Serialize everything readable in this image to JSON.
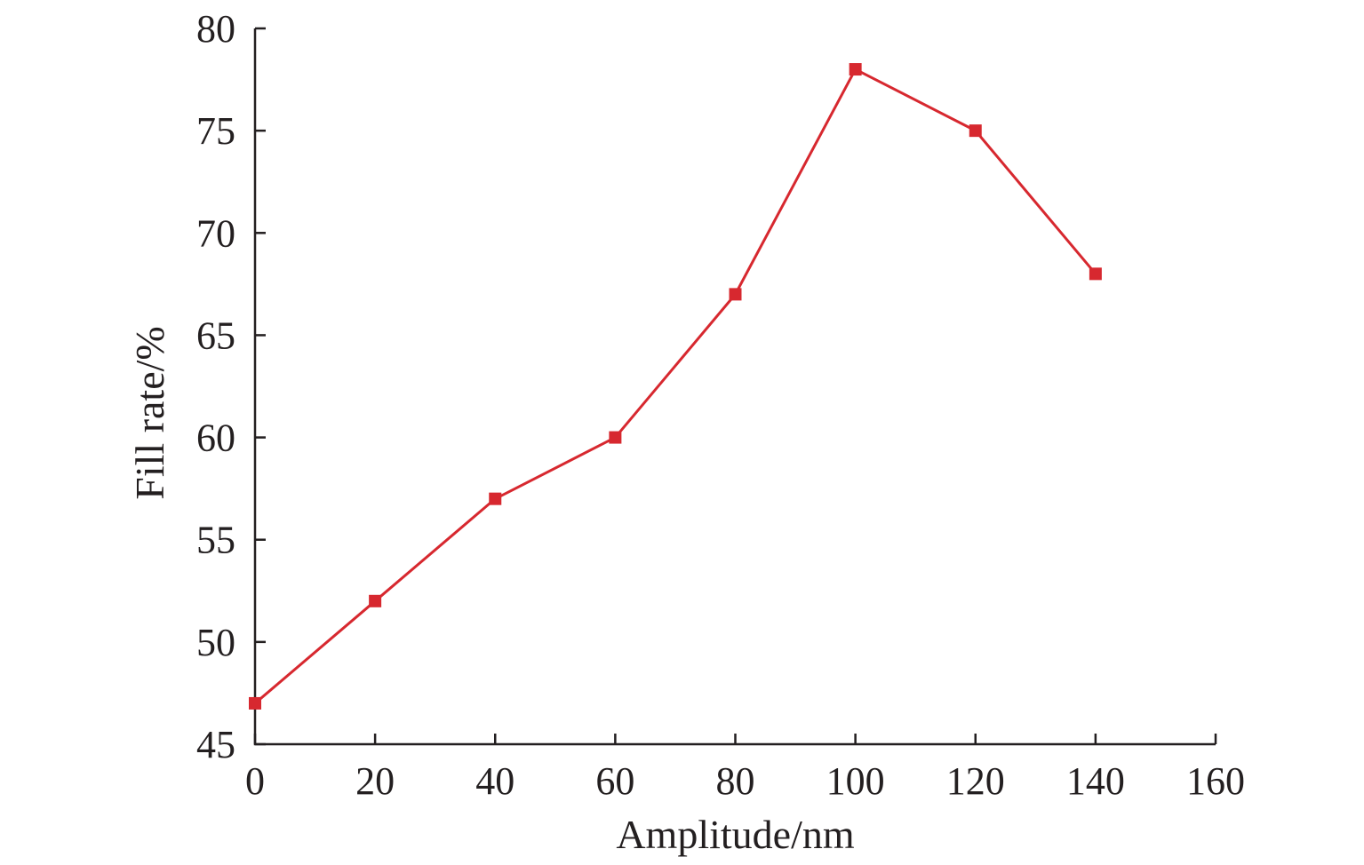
{
  "chart_data": {
    "type": "line",
    "title": "",
    "xlabel": "Amplitude/nm",
    "ylabel": "Fill rate/%",
    "xlim": [
      0,
      160
    ],
    "ylim": [
      45,
      80
    ],
    "x_ticks": [
      "0",
      "20",
      "40",
      "60",
      "80",
      "100",
      "120",
      "140",
      "160"
    ],
    "y_ticks": [
      "45",
      "50",
      "55",
      "60",
      "65",
      "70",
      "75",
      "80"
    ],
    "grid": false,
    "legend": "none",
    "series": [
      {
        "color": "#d7282f",
        "marker": "square",
        "x": [
          0,
          20,
          40,
          60,
          80,
          100,
          120,
          140
        ],
        "y": [
          47,
          52,
          57,
          60,
          67,
          78,
          75,
          68
        ]
      }
    ]
  }
}
